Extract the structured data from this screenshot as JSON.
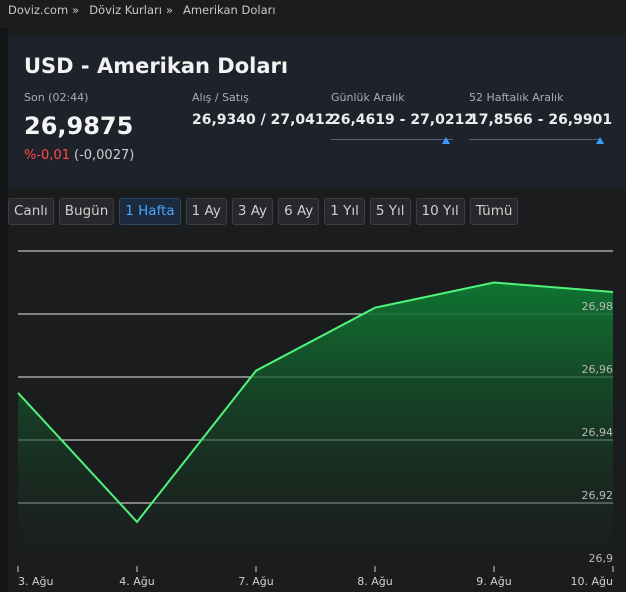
{
  "breadcrumb": [
    "Doviz.com",
    "Döviz Kurları",
    "Amerikan Doları"
  ],
  "header": {
    "title": "USD - Amerikan Doları"
  },
  "last": {
    "label": "Son (02:44)",
    "value": "26,9875",
    "change_pct": "%-0,01",
    "change_abs": "(-0,0027)"
  },
  "bid_ask": {
    "label": "Alış / Satış",
    "value": "26,9340 / 27,0412"
  },
  "daily_range": {
    "label": "Günlük Aralık",
    "value": "26,4619 - 27,0212",
    "marker": 0.94
  },
  "week52_range": {
    "label": "52 Haftalık Aralık",
    "value": "17,8566 - 26,9901",
    "marker": 0.99
  },
  "tabs": [
    "Canlı",
    "Bugün",
    "1 Hafta",
    "1 Ay",
    "3 Ay",
    "6 Ay",
    "1 Yıl",
    "5 Yıl",
    "10 Yıl",
    "Tümü"
  ],
  "active_tab": "1 Hafta",
  "colors": {
    "line": "#4ff27a",
    "fill_top": "#0f7a32",
    "fill_bottom": "#1b1c1e",
    "negative": "#ff4a4a",
    "accent": "#3a9bff"
  },
  "chart_data": {
    "type": "area",
    "x": [
      "3. Ağu",
      "4. Ağu",
      "7. Ağu",
      "8. Ağu",
      "9. Ağu",
      "10. Ağu"
    ],
    "values": [
      26.955,
      26.914,
      26.962,
      26.982,
      26.99,
      26.987
    ],
    "y_ticks": [
      "26,9",
      "26,92",
      "26,94",
      "26,96",
      "26,98"
    ],
    "ylim": [
      26.9,
      27.0
    ],
    "grid": true
  }
}
